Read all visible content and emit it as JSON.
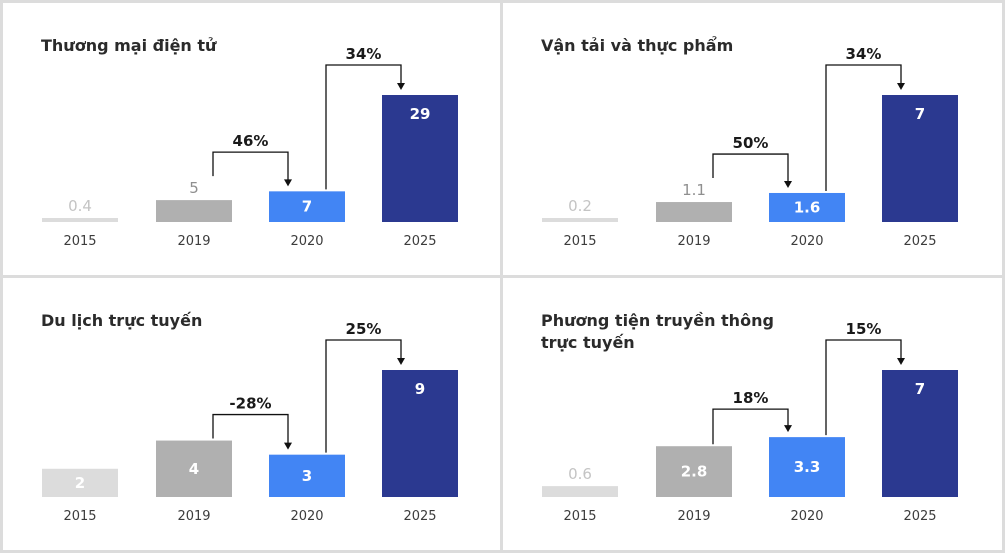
{
  "colors": {
    "c2015": "#dcdcdc",
    "c2019": "#b0b0b0",
    "c2020": "#4285f4",
    "c2025": "#2b3990",
    "value_light": "#c4c4c4",
    "value_mid": "#8f8f8f",
    "value_on_bar": "#ffffff",
    "axis_text": "#3c3c3c",
    "arrow": "#111111"
  },
  "chart_data": [
    {
      "type": "bar",
      "title": "Thương mại điện tử",
      "categories": [
        "2015",
        "2019",
        "2020",
        "2025"
      ],
      "values": [
        0.4,
        5,
        7,
        29
      ],
      "value_labels": [
        "0.4",
        "5",
        "7",
        "29"
      ],
      "growth": [
        {
          "from": "2019",
          "to": "2020",
          "label": "46%"
        },
        {
          "from": "2020",
          "to": "2025",
          "label": "34%"
        }
      ]
    },
    {
      "type": "bar",
      "title": "Vận tải và thực phẩm",
      "categories": [
        "2015",
        "2019",
        "2020",
        "2025"
      ],
      "values": [
        0.2,
        1.1,
        1.6,
        7
      ],
      "value_labels": [
        "0.2",
        "1.1",
        "1.6",
        "7"
      ],
      "growth": [
        {
          "from": "2019",
          "to": "2020",
          "label": "50%"
        },
        {
          "from": "2020",
          "to": "2025",
          "label": "34%"
        }
      ]
    },
    {
      "type": "bar",
      "title": "Du lịch trực tuyến",
      "categories": [
        "2015",
        "2019",
        "2020",
        "2025"
      ],
      "values": [
        2,
        4,
        3,
        9
      ],
      "value_labels": [
        "2",
        "4",
        "3",
        "9"
      ],
      "growth": [
        {
          "from": "2019",
          "to": "2020",
          "label": "-28%"
        },
        {
          "from": "2020",
          "to": "2025",
          "label": "25%"
        }
      ]
    },
    {
      "type": "bar",
      "title": "Phương tiện truyền thông trực tuyến",
      "categories": [
        "2015",
        "2019",
        "2020",
        "2025"
      ],
      "values": [
        0.6,
        2.8,
        3.3,
        7
      ],
      "value_labels": [
        "0.6",
        "2.8",
        "3.3",
        "7"
      ],
      "growth": [
        {
          "from": "2019",
          "to": "2020",
          "label": "18%"
        },
        {
          "from": "2020",
          "to": "2025",
          "label": "15%"
        }
      ]
    }
  ]
}
